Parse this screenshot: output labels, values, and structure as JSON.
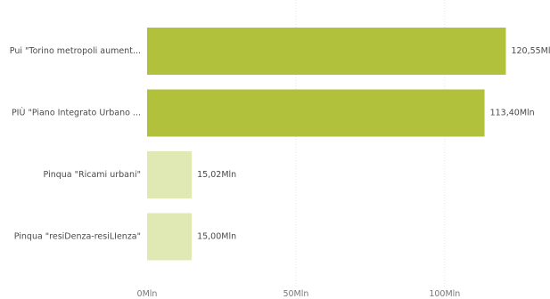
{
  "chart_data": {
    "type": "bar",
    "orientation": "horizontal",
    "categories": [
      "Pui \"Torino metropoli aument...",
      "PIÙ \"Piano Integrato Urbano ...",
      "Pinqua \"Ricami urbani\"",
      "Pinqua \"resiDenza-resiLIenza\""
    ],
    "values": [
      120.55,
      113.4,
      15.02,
      15.0
    ],
    "value_labels": [
      "120,55Mln",
      "113,40Mln",
      "15,02Mln",
      "15,00Mln"
    ],
    "colors": [
      "#b2c13c",
      "#b2c13c",
      "#e0e8b4",
      "#e0e8b4"
    ],
    "xlim": [
      0,
      130
    ],
    "x_ticks": [
      0,
      50,
      100
    ],
    "x_tick_labels": [
      "0Mln",
      "50Mln",
      "100Mln"
    ],
    "grid": true,
    "gridline_color": "#e6e6e6",
    "title": "",
    "xlabel": "",
    "ylabel": ""
  }
}
